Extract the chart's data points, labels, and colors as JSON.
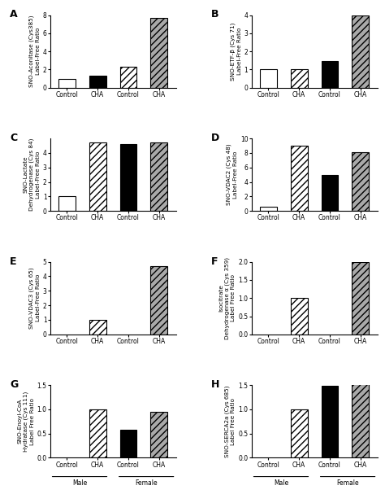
{
  "panels": [
    {
      "label": "A",
      "ylabel": "SNO-Aconitase (Cys385)\nLabel-Free Ratio",
      "ylim": [
        0,
        8
      ],
      "yticks": [
        0,
        2,
        4,
        6,
        8
      ],
      "values": [
        1.0,
        1.35,
        2.3,
        7.7
      ],
      "colors": [
        "white",
        "black",
        "hatch_light",
        "hatch_dark"
      ],
      "show_male_female": false
    },
    {
      "label": "B",
      "ylabel": "SNO-ETF-β (Cys 71)\nLabel-Free Ratio",
      "ylim": [
        0,
        4
      ],
      "yticks": [
        0,
        1,
        2,
        3,
        4
      ],
      "values": [
        1.0,
        1.0,
        1.45,
        4.0
      ],
      "colors": [
        "white",
        "hatch_light",
        "black",
        "hatch_dark"
      ],
      "show_male_female": false
    },
    {
      "label": "C",
      "ylabel": "SNO-Lactate\nDehydrogenase (Cys 84)\nLabel-Free Ratio",
      "ylim": [
        0,
        5
      ],
      "yticks": [
        0,
        1,
        2,
        3,
        4
      ],
      "values": [
        1.0,
        4.7,
        4.6,
        4.75
      ],
      "colors": [
        "white",
        "hatch_light",
        "black",
        "hatch_dark"
      ],
      "show_male_female": false
    },
    {
      "label": "D",
      "ylabel": "SNO-VDAC2 (Cys 48)\nLabel-Free Ratio",
      "ylim": [
        0,
        10
      ],
      "yticks": [
        0,
        2,
        4,
        6,
        8,
        10
      ],
      "values": [
        0.6,
        9.0,
        5.0,
        8.1
      ],
      "colors": [
        "white",
        "hatch_light",
        "black",
        "hatch_dark"
      ],
      "show_male_female": false
    },
    {
      "label": "E",
      "ylabel": "SNO-VDAC3 (Cys 65)\nLabel-Free Ratio",
      "ylim": [
        0,
        5
      ],
      "yticks": [
        0,
        1,
        2,
        3,
        4,
        5
      ],
      "values": [
        0.0,
        1.0,
        0.0,
        4.7
      ],
      "colors": [
        "white",
        "hatch_light",
        "black",
        "hatch_dark"
      ],
      "show_male_female": false
    },
    {
      "label": "F",
      "ylabel": "Isocitrate\nDehydrogenase α (Cys 359)\nLabel Free Ratio",
      "ylim": [
        0,
        2.0
      ],
      "yticks": [
        0.0,
        0.5,
        1.0,
        1.5,
        2.0
      ],
      "values": [
        0.0,
        1.0,
        0.0,
        2.0
      ],
      "colors": [
        "white",
        "hatch_light",
        "black",
        "hatch_dark"
      ],
      "show_male_female": false
    },
    {
      "label": "G",
      "ylabel": "SNO-Enoyl-CoA\nHydratase (Cys 111)\nLabel Free Ratio",
      "ylim": [
        0,
        1.5
      ],
      "yticks": [
        0.0,
        0.5,
        1.0,
        1.5
      ],
      "values": [
        0.0,
        1.0,
        0.58,
        0.95
      ],
      "colors": [
        "white",
        "hatch_light",
        "black",
        "hatch_dark"
      ],
      "show_male_female": true
    },
    {
      "label": "H",
      "ylabel": "SNO-SERCA2a (Cys 685)\nLabel Free Ratio",
      "ylim": [
        0,
        1.5
      ],
      "yticks": [
        0.0,
        0.5,
        1.0,
        1.5
      ],
      "values": [
        0.0,
        1.0,
        1.48,
        1.55
      ],
      "colors": [
        "white",
        "hatch_light",
        "black",
        "hatch_dark"
      ],
      "show_male_female": true
    }
  ],
  "bar_width": 0.55,
  "x_positions": [
    0,
    1,
    2,
    3
  ],
  "x_ticklabels": [
    "Control",
    "CHA",
    "Control",
    "CHA"
  ]
}
